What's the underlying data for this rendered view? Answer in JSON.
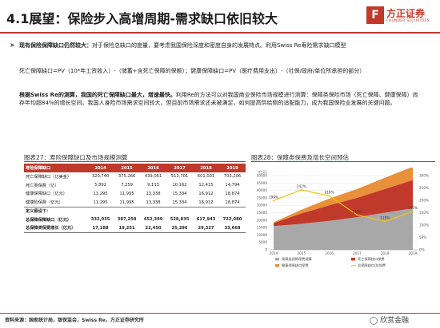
{
  "header": {
    "title": "4.1展望：保险步入高增周期-需求缺口依旧较大",
    "logo_cn": "方正证券",
    "logo_en": "FOUNDER SECURITIES",
    "logo_mark": "F"
  },
  "body": {
    "bullet_mark": "➤",
    "p1_lead": "现有保险保障缺口仍然较大：",
    "p1_text": "对于保险总缺口的度量，要考虑我国保险深度和密度自身的发展特点。利用Swiss Re寿险需求缺口模型",
    "p2": "死亡保障缺口=PV（10*年工资收入）-（储蓄+含死亡保障的保额）；健康保障缺口=PV（医疗费用支出）-（社保/政府/单位所承担的部分）",
    "p3_lead": "根据Swiss Re的测算，我国的死亡保障缺口最大，增速最快。",
    "p3_text": "利用Re的方法可以对我国商业保险市场规模进行测算：保障类保险市场（死亡保障、健康保障）尚存年均超84%的增长空间。我国人身险市场需求空间较大，但目前市场需求还未被满足，如何提高供给侧的适配能力，成为我国保险业发展的关键问题。"
  },
  "table_fig": {
    "title": "图表27：寿险保障缺口及市场规模测算",
    "header_label": "寿险保障缺口",
    "years": [
      "2014",
      "2015",
      "2016",
      "2017",
      "2018",
      "2019"
    ],
    "rows": [
      {
        "label": "死亡保障缺口（亿美金）",
        "values": [
          "320,740",
          "375,266",
          "439,061",
          "513,701",
          "601,031",
          "703,206"
        ],
        "style": ""
      },
      {
        "label": "死亡类保费（亿）",
        "values": [
          "5,892",
          "7,259",
          "9,113",
          "10,162",
          "12,415",
          "14,794"
        ],
        "style": ""
      },
      {
        "label": "健康保障缺口（亿元）",
        "values": [
          "11,295",
          "11,995",
          "13,338",
          "15,334",
          "16,912",
          "18,874"
        ],
        "style": ""
      },
      {
        "label": "健康险保费（亿元）",
        "values": [
          "11,295",
          "11,995",
          "13,338",
          "15,334",
          "16,912",
          "18,874"
        ],
        "style": ""
      },
      {
        "label": "定义假设下：",
        "values": [
          "",
          "",
          "",
          "",
          "",
          ""
        ],
        "style": "sum sum-top"
      },
      {
        "label": "总保障保障缺口（亿元）",
        "values": [
          "332,035",
          "387,258",
          "452,399",
          "528,835",
          "617,943",
          "722,080"
        ],
        "style": "sum"
      },
      {
        "label": "总保障类保费增长（亿元）",
        "values": [
          "17,188",
          "19,251",
          "22,450",
          "25,296",
          "29,327",
          "33,668"
        ],
        "style": "sum last"
      }
    ]
  },
  "chart_fig": {
    "title": "图表28：保障类保费及增长空间预估"
  },
  "chart_data": {
    "type": "area",
    "x": [
      "2014",
      "2015",
      "2016",
      "2017",
      "2018",
      "2019"
    ],
    "left_unit": "(亿元)",
    "left_ticks": [
      "0",
      "5000",
      "10000",
      "15000",
      "20000",
      "25000",
      "30000",
      "35000",
      "40000",
      "45000",
      "50000"
    ],
    "ylim": [
      0,
      50000
    ],
    "right_ticks": [
      "0%",
      "50%",
      "100%",
      "150%",
      "200%",
      "250%",
      "300%"
    ],
    "y2lim": [
      0,
      300
    ],
    "series": [
      {
        "name": "保障类保障保费规模",
        "color": "#a8a8a8",
        "values": [
          16000,
          17500,
          19500,
          22000,
          25000,
          28000
        ]
      },
      {
        "name": "死亡保障缺口保费",
        "color": "#c0392b",
        "values": [
          2000,
          7000,
          10500,
          13000,
          16000,
          19000
        ]
      },
      {
        "name": "健康保障缺口保费",
        "color": "#e8903a",
        "values": [
          500,
          2500,
          4500,
          6000,
          7500,
          9000
        ]
      }
    ],
    "line": {
      "name": "总保障缺口/总保费",
      "color": "#f1c40f",
      "values": [
        199,
        242,
        218,
        141,
        115,
        155
      ]
    },
    "labels": [
      "199%",
      "242%",
      "218%",
      "141%",
      "115%",
      "155%"
    ]
  },
  "footer": {
    "source": "资料来源：国家统计局，银保监会，Swiss Re，方正证券研究所",
    "watermark": "欣赏金融"
  }
}
